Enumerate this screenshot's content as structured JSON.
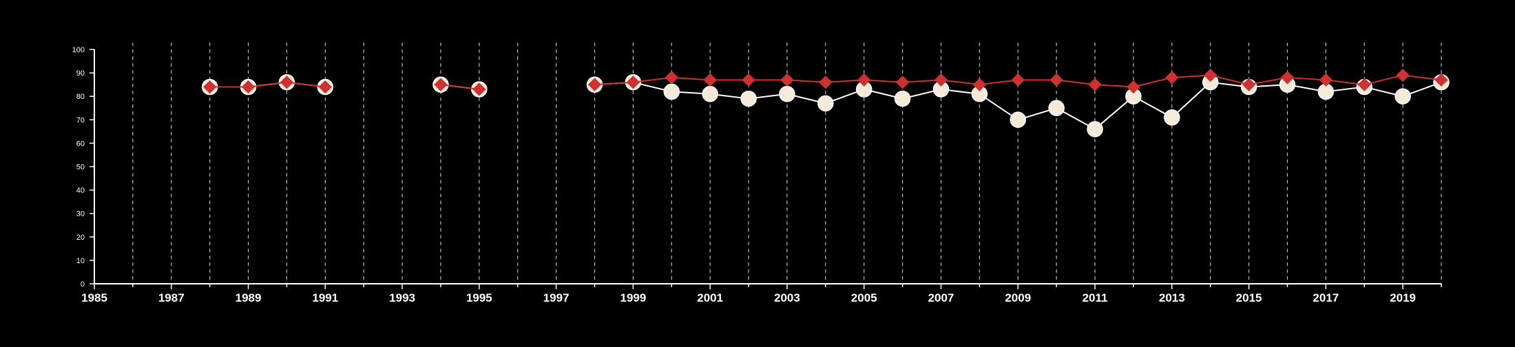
{
  "chart_data": {
    "type": "line",
    "title": "",
    "xlabel": "",
    "ylabel": "",
    "xlim": [
      1985,
      2020
    ],
    "ylim": [
      0,
      100
    ],
    "x_ticks": [
      1985,
      1987,
      1989,
      1991,
      1993,
      1995,
      1997,
      1999,
      2001,
      2003,
      2005,
      2007,
      2009,
      2011,
      2013,
      2015,
      2017,
      2019
    ],
    "y_ticks": [
      0,
      10,
      20,
      30,
      40,
      50,
      60,
      70,
      80,
      90,
      100
    ],
    "vertical_grid": "dashed, every year",
    "background": "#000000",
    "series": [
      {
        "marker": "circle",
        "color": "#f5ead8",
        "line_color": "#ffffff",
        "points": [
          {
            "x": 1988,
            "y": 84
          },
          {
            "x": 1989,
            "y": 84
          },
          {
            "x": 1990,
            "y": 86
          },
          {
            "x": 1991,
            "y": 84
          },
          {
            "x": 1994,
            "y": 85
          },
          {
            "x": 1995,
            "y": 83
          },
          {
            "x": 1998,
            "y": 85
          },
          {
            "x": 1999,
            "y": 86
          },
          {
            "x": 2000,
            "y": 82
          },
          {
            "x": 2001,
            "y": 81
          },
          {
            "x": 2002,
            "y": 79
          },
          {
            "x": 2003,
            "y": 81
          },
          {
            "x": 2004,
            "y": 77
          },
          {
            "x": 2005,
            "y": 83
          },
          {
            "x": 2006,
            "y": 79
          },
          {
            "x": 2007,
            "y": 83
          },
          {
            "x": 2008,
            "y": 81
          },
          {
            "x": 2009,
            "y": 70
          },
          {
            "x": 2010,
            "y": 75
          },
          {
            "x": 2011,
            "y": 66
          },
          {
            "x": 2012,
            "y": 80
          },
          {
            "x": 2013,
            "y": 71
          },
          {
            "x": 2014,
            "y": 86
          },
          {
            "x": 2015,
            "y": 84
          },
          {
            "x": 2016,
            "y": 85
          },
          {
            "x": 2017,
            "y": 82
          },
          {
            "x": 2018,
            "y": 84
          },
          {
            "x": 2019,
            "y": 80
          },
          {
            "x": 2020,
            "y": 86
          }
        ]
      },
      {
        "marker": "diamond",
        "color": "#d03030",
        "line_color": "#d03030",
        "points": [
          {
            "x": 1988,
            "y": 84
          },
          {
            "x": 1989,
            "y": 84
          },
          {
            "x": 1990,
            "y": 86
          },
          {
            "x": 1991,
            "y": 84
          },
          {
            "x": 1994,
            "y": 85
          },
          {
            "x": 1995,
            "y": 83
          },
          {
            "x": 1998,
            "y": 85
          },
          {
            "x": 1999,
            "y": 86
          },
          {
            "x": 2000,
            "y": 88
          },
          {
            "x": 2001,
            "y": 87
          },
          {
            "x": 2002,
            "y": 87
          },
          {
            "x": 2003,
            "y": 87
          },
          {
            "x": 2004,
            "y": 86
          },
          {
            "x": 2005,
            "y": 87
          },
          {
            "x": 2006,
            "y": 86
          },
          {
            "x": 2007,
            "y": 87
          },
          {
            "x": 2008,
            "y": 85
          },
          {
            "x": 2009,
            "y": 87
          },
          {
            "x": 2010,
            "y": 87
          },
          {
            "x": 2011,
            "y": 85
          },
          {
            "x": 2012,
            "y": 84
          },
          {
            "x": 2013,
            "y": 88
          },
          {
            "x": 2014,
            "y": 89
          },
          {
            "x": 2015,
            "y": 85
          },
          {
            "x": 2016,
            "y": 88
          },
          {
            "x": 2017,
            "y": 87
          },
          {
            "x": 2018,
            "y": 85
          },
          {
            "x": 2019,
            "y": 89
          },
          {
            "x": 2020,
            "y": 87
          }
        ]
      }
    ],
    "axis_color": "#ffffff",
    "grid_color": "#bbbbbb"
  }
}
